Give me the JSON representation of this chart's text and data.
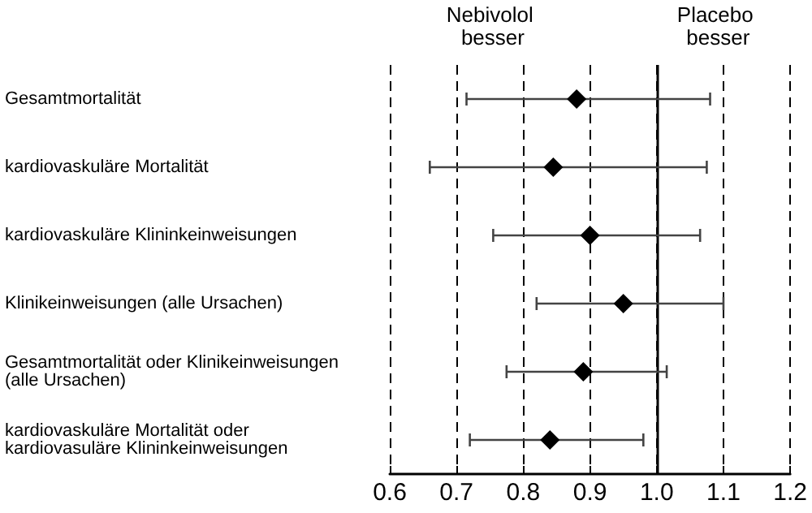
{
  "chart_data": {
    "type": "scatter",
    "orientation": "horizontal",
    "categories": [
      "Gesamtmortalität",
      "kardiovaskuläre Mortalität",
      "kardiovaskuläre Klininkeinweisungen",
      "Klinikeinweisungen (alle Ursachen)",
      "Gesamtmortalität oder Klinikeinweisungen (alle Ursachen)",
      "kardiovaskuläre Mortalität oder kardiovasuläre Klininkeinweisungen"
    ],
    "values": [
      0.88,
      0.845,
      0.9,
      0.95,
      0.89,
      0.84
    ],
    "errors": [
      [
        0.715,
        1.08
      ],
      [
        0.66,
        1.075
      ],
      [
        0.755,
        1.065
      ],
      [
        0.82,
        1.1
      ],
      [
        0.775,
        1.015
      ],
      [
        0.72,
        0.98
      ]
    ],
    "color": "#000000",
    "marker": "diamond",
    "xlim": [
      0.6,
      1.2
    ],
    "xticks": [
      {
        "value": 0.6,
        "label": "0.6"
      },
      {
        "value": 0.7,
        "label": "0.7"
      },
      {
        "value": 0.8,
        "label": "0.8"
      },
      {
        "value": 0.9,
        "label": "0.9"
      },
      {
        "value": 1.0,
        "label": "1.0"
      },
      {
        "value": 1.1,
        "label": "1.1"
      },
      {
        "value": 1.2,
        "label": "1.2"
      }
    ],
    "grid": "x",
    "ref_lines": [
      {
        "axis": "x",
        "value": 1.0,
        "line_style": "solid",
        "color": "#000000"
      }
    ],
    "annotations": [
      "Nebivolol besser",
      "Placebo besser"
    ]
  }
}
